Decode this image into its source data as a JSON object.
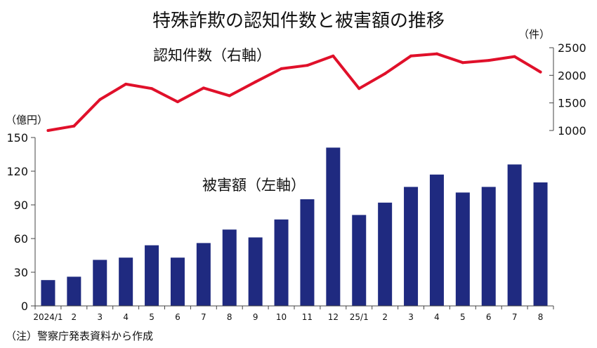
{
  "chart_data": {
    "type": "bar+line",
    "title": "特殊詐欺の認知件数と被害額の推移",
    "categories": [
      "2024/1",
      "2",
      "3",
      "4",
      "5",
      "6",
      "7",
      "8",
      "9",
      "10",
      "11",
      "12",
      "25/1",
      "2",
      "3",
      "4",
      "5",
      "6",
      "7",
      "8"
    ],
    "series": [
      {
        "name": "被害額（左軸）",
        "type": "bar",
        "axis": "left",
        "unit": "（億円）",
        "color": "#1f2a80",
        "values": [
          23,
          26,
          41,
          43,
          54,
          43,
          56,
          68,
          61,
          77,
          95,
          141,
          81,
          92,
          106,
          117,
          101,
          106,
          126,
          110
        ]
      },
      {
        "name": "認知件数（右軸）",
        "type": "line",
        "axis": "right",
        "unit": "（件）",
        "color": "#e0102a",
        "values": [
          1000,
          1080,
          1560,
          1840,
          1760,
          1520,
          1770,
          1630,
          1880,
          2120,
          2180,
          2350,
          1760,
          2030,
          2350,
          2390,
          2230,
          2270,
          2340,
          2060
        ]
      }
    ],
    "left_axis": {
      "ylim": [
        0,
        150
      ],
      "ticks": [
        "0",
        "30",
        "60",
        "90",
        "120",
        "150"
      ]
    },
    "right_axis": {
      "ylim": [
        1000,
        2500
      ],
      "ticks": [
        "1000",
        "1500",
        "2000",
        "2500"
      ]
    },
    "grid": false,
    "note": "（注）警察庁発表資料から作成"
  }
}
